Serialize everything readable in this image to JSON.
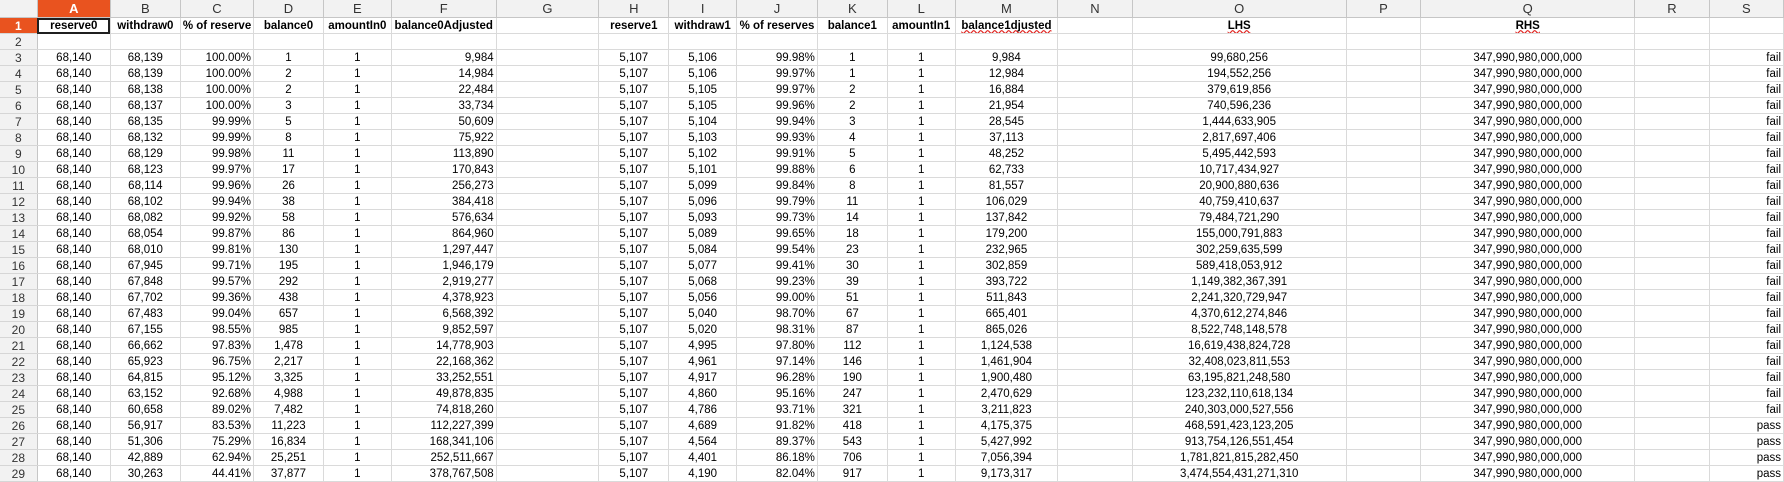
{
  "app": {
    "name": "LibreOffice Calc",
    "accent_color": "#e9531f",
    "gridline_color": "#dadada",
    "active_cell": "A1"
  },
  "columns": [
    "A",
    "B",
    "C",
    "D",
    "E",
    "F",
    "G",
    "H",
    "I",
    "J",
    "K",
    "L",
    "M",
    "N",
    "O",
    "P",
    "Q",
    "R",
    "S"
  ],
  "headers": [
    "reserve0",
    "withdraw0",
    "% of reserve",
    "balance0",
    "amountIn0",
    "balance0Adjusted",
    "",
    "reserve1",
    "withdraw1",
    "% of reserves",
    "balance1",
    "amountIn1",
    "balance1djusted",
    "",
    "LHS",
    "",
    "RHS",
    "",
    ""
  ],
  "rows": [
    {
      "n": "2",
      "c": [
        "",
        "",
        "",
        "",
        "",
        "",
        "",
        "",
        "",
        "",
        "",
        "",
        "",
        "",
        "",
        "",
        "",
        "",
        ""
      ]
    },
    {
      "n": "3",
      "c": [
        "68,140",
        "68,139",
        "100.00%",
        "1",
        "1",
        "9,984",
        "",
        "5,107",
        "5,106",
        "99.98%",
        "1",
        "1",
        "9,984",
        "",
        "99,680,256",
        "",
        "347,990,980,000,000",
        "",
        "fail"
      ]
    },
    {
      "n": "4",
      "c": [
        "68,140",
        "68,139",
        "100.00%",
        "2",
        "1",
        "14,984",
        "",
        "5,107",
        "5,106",
        "99.97%",
        "1",
        "1",
        "12,984",
        "",
        "194,552,256",
        "",
        "347,990,980,000,000",
        "",
        "fail"
      ]
    },
    {
      "n": "5",
      "c": [
        "68,140",
        "68,138",
        "100.00%",
        "2",
        "1",
        "22,484",
        "",
        "5,107",
        "5,105",
        "99.97%",
        "2",
        "1",
        "16,884",
        "",
        "379,619,856",
        "",
        "347,990,980,000,000",
        "",
        "fail"
      ]
    },
    {
      "n": "6",
      "c": [
        "68,140",
        "68,137",
        "100.00%",
        "3",
        "1",
        "33,734",
        "",
        "5,107",
        "5,105",
        "99.96%",
        "2",
        "1",
        "21,954",
        "",
        "740,596,236",
        "",
        "347,990,980,000,000",
        "",
        "fail"
      ]
    },
    {
      "n": "7",
      "c": [
        "68,140",
        "68,135",
        "99.99%",
        "5",
        "1",
        "50,609",
        "",
        "5,107",
        "5,104",
        "99.94%",
        "3",
        "1",
        "28,545",
        "",
        "1,444,633,905",
        "",
        "347,990,980,000,000",
        "",
        "fail"
      ]
    },
    {
      "n": "8",
      "c": [
        "68,140",
        "68,132",
        "99.99%",
        "8",
        "1",
        "75,922",
        "",
        "5,107",
        "5,103",
        "99.93%",
        "4",
        "1",
        "37,113",
        "",
        "2,817,697,406",
        "",
        "347,990,980,000,000",
        "",
        "fail"
      ]
    },
    {
      "n": "9",
      "c": [
        "68,140",
        "68,129",
        "99.98%",
        "11",
        "1",
        "113,890",
        "",
        "5,107",
        "5,102",
        "99.91%",
        "5",
        "1",
        "48,252",
        "",
        "5,495,442,593",
        "",
        "347,990,980,000,000",
        "",
        "fail"
      ]
    },
    {
      "n": "10",
      "c": [
        "68,140",
        "68,123",
        "99.97%",
        "17",
        "1",
        "170,843",
        "",
        "5,107",
        "5,101",
        "99.88%",
        "6",
        "1",
        "62,733",
        "",
        "10,717,434,927",
        "",
        "347,990,980,000,000",
        "",
        "fail"
      ]
    },
    {
      "n": "11",
      "c": [
        "68,140",
        "68,114",
        "99.96%",
        "26",
        "1",
        "256,273",
        "",
        "5,107",
        "5,099",
        "99.84%",
        "8",
        "1",
        "81,557",
        "",
        "20,900,880,636",
        "",
        "347,990,980,000,000",
        "",
        "fail"
      ]
    },
    {
      "n": "12",
      "c": [
        "68,140",
        "68,102",
        "99.94%",
        "38",
        "1",
        "384,418",
        "",
        "5,107",
        "5,096",
        "99.79%",
        "11",
        "1",
        "106,029",
        "",
        "40,759,410,637",
        "",
        "347,990,980,000,000",
        "",
        "fail"
      ]
    },
    {
      "n": "13",
      "c": [
        "68,140",
        "68,082",
        "99.92%",
        "58",
        "1",
        "576,634",
        "",
        "5,107",
        "5,093",
        "99.73%",
        "14",
        "1",
        "137,842",
        "",
        "79,484,721,290",
        "",
        "347,990,980,000,000",
        "",
        "fail"
      ]
    },
    {
      "n": "14",
      "c": [
        "68,140",
        "68,054",
        "99.87%",
        "86",
        "1",
        "864,960",
        "",
        "5,107",
        "5,089",
        "99.65%",
        "18",
        "1",
        "179,200",
        "",
        "155,000,791,883",
        "",
        "347,990,980,000,000",
        "",
        "fail"
      ]
    },
    {
      "n": "15",
      "c": [
        "68,140",
        "68,010",
        "99.81%",
        "130",
        "1",
        "1,297,447",
        "",
        "5,107",
        "5,084",
        "99.54%",
        "23",
        "1",
        "232,965",
        "",
        "302,259,635,599",
        "",
        "347,990,980,000,000",
        "",
        "fail"
      ]
    },
    {
      "n": "16",
      "c": [
        "68,140",
        "67,945",
        "99.71%",
        "195",
        "1",
        "1,946,179",
        "",
        "5,107",
        "5,077",
        "99.41%",
        "30",
        "1",
        "302,859",
        "",
        "589,418,053,912",
        "",
        "347,990,980,000,000",
        "",
        "fail"
      ]
    },
    {
      "n": "17",
      "c": [
        "68,140",
        "67,848",
        "99.57%",
        "292",
        "1",
        "2,919,277",
        "",
        "5,107",
        "5,068",
        "99.23%",
        "39",
        "1",
        "393,722",
        "",
        "1,149,382,367,391",
        "",
        "347,990,980,000,000",
        "",
        "fail"
      ]
    },
    {
      "n": "18",
      "c": [
        "68,140",
        "67,702",
        "99.36%",
        "438",
        "1",
        "4,378,923",
        "",
        "5,107",
        "5,056",
        "99.00%",
        "51",
        "1",
        "511,843",
        "",
        "2,241,320,729,947",
        "",
        "347,990,980,000,000",
        "",
        "fail"
      ]
    },
    {
      "n": "19",
      "c": [
        "68,140",
        "67,483",
        "99.04%",
        "657",
        "1",
        "6,568,392",
        "",
        "5,107",
        "5,040",
        "98.70%",
        "67",
        "1",
        "665,401",
        "",
        "4,370,612,274,846",
        "",
        "347,990,980,000,000",
        "",
        "fail"
      ]
    },
    {
      "n": "20",
      "c": [
        "68,140",
        "67,155",
        "98.55%",
        "985",
        "1",
        "9,852,597",
        "",
        "5,107",
        "5,020",
        "98.31%",
        "87",
        "1",
        "865,026",
        "",
        "8,522,748,148,578",
        "",
        "347,990,980,000,000",
        "",
        "fail"
      ]
    },
    {
      "n": "21",
      "c": [
        "68,140",
        "66,662",
        "97.83%",
        "1,478",
        "1",
        "14,778,903",
        "",
        "5,107",
        "4,995",
        "97.80%",
        "112",
        "1",
        "1,124,538",
        "",
        "16,619,438,824,728",
        "",
        "347,990,980,000,000",
        "",
        "fail"
      ]
    },
    {
      "n": "22",
      "c": [
        "68,140",
        "65,923",
        "96.75%",
        "2,217",
        "1",
        "22,168,362",
        "",
        "5,107",
        "4,961",
        "97.14%",
        "146",
        "1",
        "1,461,904",
        "",
        "32,408,023,811,553",
        "",
        "347,990,980,000,000",
        "",
        "fail"
      ]
    },
    {
      "n": "23",
      "c": [
        "68,140",
        "64,815",
        "95.12%",
        "3,325",
        "1",
        "33,252,551",
        "",
        "5,107",
        "4,917",
        "96.28%",
        "190",
        "1",
        "1,900,480",
        "",
        "63,195,821,248,580",
        "",
        "347,990,980,000,000",
        "",
        "fail"
      ]
    },
    {
      "n": "24",
      "c": [
        "68,140",
        "63,152",
        "92.68%",
        "4,988",
        "1",
        "49,878,835",
        "",
        "5,107",
        "4,860",
        "95.16%",
        "247",
        "1",
        "2,470,629",
        "",
        "123,232,110,618,134",
        "",
        "347,990,980,000,000",
        "",
        "fail"
      ]
    },
    {
      "n": "25",
      "c": [
        "68,140",
        "60,658",
        "89.02%",
        "7,482",
        "1",
        "74,818,260",
        "",
        "5,107",
        "4,786",
        "93.71%",
        "321",
        "1",
        "3,211,823",
        "",
        "240,303,000,527,556",
        "",
        "347,990,980,000,000",
        "",
        "fail"
      ]
    },
    {
      "n": "26",
      "c": [
        "68,140",
        "56,917",
        "83.53%",
        "11,223",
        "1",
        "112,227,399",
        "",
        "5,107",
        "4,689",
        "91.82%",
        "418",
        "1",
        "4,175,375",
        "",
        "468,591,423,123,205",
        "",
        "347,990,980,000,000",
        "",
        "pass"
      ]
    },
    {
      "n": "27",
      "c": [
        "68,140",
        "51,306",
        "75.29%",
        "16,834",
        "1",
        "168,341,106",
        "",
        "5,107",
        "4,564",
        "89.37%",
        "543",
        "1",
        "5,427,992",
        "",
        "913,754,126,551,454",
        "",
        "347,990,980,000,000",
        "",
        "pass"
      ]
    },
    {
      "n": "28",
      "c": [
        "68,140",
        "42,889",
        "62.94%",
        "25,251",
        "1",
        "252,511,667",
        "",
        "5,107",
        "4,401",
        "86.18%",
        "706",
        "1",
        "7,056,394",
        "",
        "1,781,821,815,282,450",
        "",
        "347,990,980,000,000",
        "",
        "pass"
      ]
    },
    {
      "n": "29",
      "c": [
        "68,140",
        "30,263",
        "44.41%",
        "37,877",
        "1",
        "378,767,508",
        "",
        "5,107",
        "4,190",
        "82.04%",
        "917",
        "1",
        "9,173,317",
        "",
        "3,474,554,431,271,310",
        "",
        "347,990,980,000,000",
        "",
        "pass"
      ]
    }
  ]
}
